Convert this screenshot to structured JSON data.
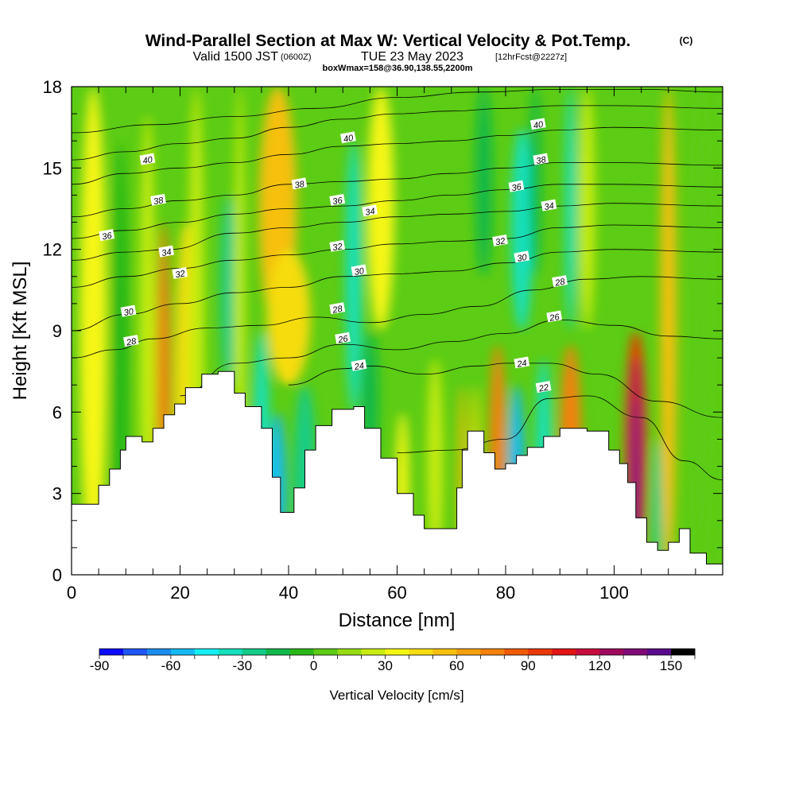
{
  "title": {
    "main": "Wind-Parallel Section at Max W: Vertical Velocity & Pot.Temp.",
    "copyright": "(C)",
    "valid_a": "Valid 1500 JST",
    "valid_b": "(0600Z)",
    "valid_c": "TUE 23 May 2023",
    "valid_d": "[12hrFcst@2227z]",
    "boxw": "boxWmax=158@36.90,138.55,2200m"
  },
  "colorbar": {
    "title": "Vertical Velocity [cm/s]",
    "min": -90,
    "max": 160,
    "step": 10,
    "tick_values": [
      -90,
      -60,
      -30,
      0,
      30,
      60,
      90,
      120,
      150
    ],
    "tick_labels": [
      "-90",
      "-60",
      "-30",
      "0",
      "30",
      "60",
      "90",
      "120",
      "150"
    ],
    "colors": [
      "#0b0bff",
      "#1f55f5",
      "#1a8cf0",
      "#14b9f5",
      "#14f0f5",
      "#14e0bb",
      "#12cc88",
      "#10b84a",
      "#28b818",
      "#5ccc14",
      "#96dc12",
      "#c8ec10",
      "#f6f614",
      "#f6dc10",
      "#f6c00e",
      "#f6a00c",
      "#f6800a",
      "#f05a08",
      "#ea3806",
      "#e41414",
      "#c80a3c",
      "#a0085c",
      "#800a78",
      "#5a0a8c"
    ]
  },
  "chart_data": {
    "type": "heatmap",
    "title": "Wind-Parallel Section at Max W: Vertical Velocity & Pot.Temp.",
    "xlabel": "Distance [nm]",
    "ylabel": "Height [Kft MSL]",
    "xlim": [
      0,
      120
    ],
    "ylim": [
      0,
      18
    ],
    "x_ticks": [
      0,
      20,
      40,
      60,
      80,
      100
    ],
    "x_tick_labels": [
      "0",
      "20",
      "40",
      "60",
      "80",
      "100"
    ],
    "y_ticks": [
      0,
      3,
      6,
      9,
      12,
      15,
      18
    ],
    "y_tick_labels": [
      "0",
      "3",
      "6",
      "9",
      "12",
      "15",
      "18"
    ],
    "terrain": [
      [
        0,
        2.6
      ],
      [
        5,
        3.3
      ],
      [
        7,
        3.9
      ],
      [
        9,
        4.6
      ],
      [
        10,
        5.1
      ],
      [
        13,
        4.9
      ],
      [
        15,
        5.4
      ],
      [
        17,
        5.9
      ],
      [
        19,
        6.3
      ],
      [
        21,
        6.9
      ],
      [
        24,
        7.4
      ],
      [
        27,
        7.5
      ],
      [
        30,
        6.7
      ],
      [
        32,
        6.2
      ],
      [
        35,
        5.4
      ],
      [
        37,
        3.6
      ],
      [
        38.5,
        2.3
      ],
      [
        41,
        3.2
      ],
      [
        43,
        4.6
      ],
      [
        45,
        5.5
      ],
      [
        48,
        6.1
      ],
      [
        52,
        6.2
      ],
      [
        54,
        5.4
      ],
      [
        57,
        4.3
      ],
      [
        60,
        3.0
      ],
      [
        63,
        2.2
      ],
      [
        65,
        1.7
      ],
      [
        69,
        1.7
      ],
      [
        71,
        3.2
      ],
      [
        72,
        4.6
      ],
      [
        73,
        5.3
      ],
      [
        75,
        5.3
      ],
      [
        76,
        4.5
      ],
      [
        78,
        3.9
      ],
      [
        80,
        4.1
      ],
      [
        82,
        4.4
      ],
      [
        84,
        4.7
      ],
      [
        87,
        5.1
      ],
      [
        90,
        5.4
      ],
      [
        95,
        5.3
      ],
      [
        99,
        4.6
      ],
      [
        101,
        4.1
      ],
      [
        102.5,
        3.4
      ],
      [
        104,
        2.1
      ],
      [
        106,
        1.2
      ],
      [
        108,
        0.9
      ],
      [
        110,
        1.2
      ],
      [
        112,
        1.7
      ],
      [
        114,
        0.8
      ],
      [
        117,
        0.4
      ],
      [
        120,
        0.4
      ]
    ],
    "w_columns": [
      {
        "x": 4,
        "w": 5,
        "top": 18,
        "bottom": 0,
        "value": 30
      },
      {
        "x": 9,
        "w": 3,
        "top": 16,
        "bottom": 0,
        "value": -10
      },
      {
        "x": 14,
        "w": 3,
        "top": 17,
        "bottom": 0,
        "value": 20
      },
      {
        "x": 17,
        "w": 2.5,
        "top": 13,
        "bottom": 0,
        "value": 70
      },
      {
        "x": 21,
        "w": 4,
        "top": 13,
        "bottom": 0,
        "value": 40
      },
      {
        "x": 23,
        "w": 3,
        "top": 18,
        "bottom": 0,
        "value": 25
      },
      {
        "x": 29,
        "w": 3,
        "top": 14,
        "bottom": 7,
        "value": -30
      },
      {
        "x": 31,
        "w": 2,
        "top": 18,
        "bottom": 0,
        "value": 20
      },
      {
        "x": 35,
        "w": 3,
        "top": 9,
        "bottom": 0,
        "value": -40
      },
      {
        "x": 38,
        "w": 3,
        "top": 6,
        "bottom": 0,
        "value": -60
      },
      {
        "x": 38,
        "w": 7,
        "top": 18,
        "bottom": 9,
        "value": 55
      },
      {
        "x": 40,
        "w": 8,
        "top": 12,
        "bottom": 7,
        "value": 40
      },
      {
        "x": 43,
        "w": 4,
        "top": 7,
        "bottom": 0,
        "value": -30
      },
      {
        "x": 52,
        "w": 3,
        "top": 16,
        "bottom": 6,
        "value": -40
      },
      {
        "x": 55,
        "w": 3,
        "top": 9,
        "bottom": 4,
        "value": -20
      },
      {
        "x": 57,
        "w": 5,
        "top": 18,
        "bottom": 9,
        "value": 30
      },
      {
        "x": 61,
        "w": 2.5,
        "top": 6,
        "bottom": 0,
        "value": 30
      },
      {
        "x": 67,
        "w": 3,
        "top": 8,
        "bottom": 0,
        "value": 20
      },
      {
        "x": 72,
        "w": 1.5,
        "top": 7,
        "bottom": 0,
        "value": 50
      },
      {
        "x": 74.5,
        "w": 1.5,
        "top": 7,
        "bottom": 0,
        "value": 40
      },
      {
        "x": 76,
        "w": 3,
        "top": 18,
        "bottom": 11,
        "value": -20
      },
      {
        "x": 78.5,
        "w": 3,
        "top": 8.5,
        "bottom": 0,
        "value": 70
      },
      {
        "x": 82,
        "w": 3,
        "top": 7,
        "bottom": 0,
        "value": -60
      },
      {
        "x": 83,
        "w": 4,
        "top": 16.5,
        "bottom": 9,
        "value": -40
      },
      {
        "x": 85.5,
        "w": 2,
        "top": 18,
        "bottom": 11,
        "value": -20
      },
      {
        "x": 87,
        "w": 3,
        "top": 8,
        "bottom": 0,
        "value": -40
      },
      {
        "x": 92,
        "w": 4,
        "top": 8.5,
        "bottom": 0,
        "value": 70
      },
      {
        "x": 92,
        "w": 2,
        "top": 18,
        "bottom": 9,
        "value": -40
      },
      {
        "x": 95,
        "w": 3,
        "top": 18,
        "bottom": 9,
        "value": 20
      },
      {
        "x": 104,
        "w": 4,
        "top": 9,
        "bottom": 0,
        "value": 90
      },
      {
        "x": 104,
        "w": 2,
        "top": 8,
        "bottom": 0,
        "value": 125
      },
      {
        "x": 104,
        "w": 1.2,
        "top": 6.5,
        "bottom": 0,
        "value": 150
      },
      {
        "x": 108,
        "w": 2,
        "top": 5,
        "bottom": 0,
        "value": -30
      },
      {
        "x": 110,
        "w": 3,
        "top": 18,
        "bottom": 0,
        "value": 50
      },
      {
        "x": 116,
        "w": 4,
        "top": 18,
        "bottom": 0,
        "value": 0
      }
    ],
    "theta_contours": [
      {
        "label": "22",
        "label_x": 87,
        "pts": [
          [
            60,
            4.5
          ],
          [
            70,
            4.6
          ],
          [
            80,
            5.0
          ],
          [
            88,
            6.5
          ],
          [
            95,
            6.6
          ],
          [
            105,
            5.8
          ],
          [
            113,
            4.2
          ],
          [
            120,
            3.5
          ]
        ]
      },
      {
        "label": "24",
        "label_x": 53,
        "pts": [
          [
            40,
            7.0
          ],
          [
            50,
            7.6
          ],
          [
            55,
            7.7
          ],
          [
            65,
            7.4
          ],
          [
            75,
            7.7
          ],
          [
            80,
            7.8
          ],
          [
            88,
            7.8
          ],
          [
            97,
            7.4
          ],
          [
            108,
            6.4
          ],
          [
            120,
            5.8
          ]
        ]
      },
      {
        "label": "26",
        "label_x": 50,
        "pts": [
          [
            20,
            6.6
          ],
          [
            30,
            7.8
          ],
          [
            40,
            8.0
          ],
          [
            50,
            8.5
          ],
          [
            60,
            8.3
          ],
          [
            70,
            8.6
          ],
          [
            80,
            8.9
          ],
          [
            90,
            9.4
          ],
          [
            100,
            9.2
          ],
          [
            110,
            8.8
          ],
          [
            120,
            8.7
          ]
        ]
      },
      {
        "label": "28",
        "label_x": 11,
        "pts": [
          [
            0,
            8.0
          ],
          [
            8,
            8.3
          ],
          [
            15,
            8.7
          ],
          [
            25,
            9.1
          ],
          [
            35,
            9.2
          ],
          [
            45,
            9.5
          ],
          [
            55,
            9.3
          ],
          [
            65,
            9.6
          ],
          [
            75,
            9.9
          ],
          [
            85,
            10.5
          ],
          [
            95,
            10.9
          ],
          [
            105,
            11.0
          ],
          [
            120,
            10.9
          ]
        ]
      },
      {
        "label": "30",
        "label_x": 11,
        "pts": [
          [
            0,
            9.0
          ],
          [
            10,
            9.6
          ],
          [
            20,
            10.0
          ],
          [
            30,
            10.4
          ],
          [
            40,
            10.6
          ],
          [
            50,
            11.0
          ],
          [
            60,
            11.1
          ],
          [
            70,
            11.2
          ],
          [
            80,
            11.5
          ],
          [
            90,
            11.9
          ],
          [
            100,
            12.0
          ],
          [
            120,
            11.9
          ]
        ]
      },
      {
        "label": "32",
        "label_x": 20,
        "pts": [
          [
            0,
            10.6
          ],
          [
            10,
            11.0
          ],
          [
            20,
            11.3
          ],
          [
            30,
            11.6
          ],
          [
            40,
            11.8
          ],
          [
            50,
            12.0
          ],
          [
            60,
            12.2
          ],
          [
            70,
            12.3
          ],
          [
            80,
            12.4
          ],
          [
            90,
            12.8
          ],
          [
            100,
            12.9
          ],
          [
            120,
            12.8
          ]
        ]
      },
      {
        "label": "34",
        "label_x": 17,
        "pts": [
          [
            0,
            11.6
          ],
          [
            10,
            11.9
          ],
          [
            18,
            12.0
          ],
          [
            30,
            12.6
          ],
          [
            40,
            12.8
          ],
          [
            50,
            13.0
          ],
          [
            60,
            13.2
          ],
          [
            70,
            13.3
          ],
          [
            80,
            13.4
          ],
          [
            90,
            13.6
          ],
          [
            100,
            13.7
          ],
          [
            120,
            13.6
          ]
        ]
      },
      {
        "label": "36",
        "label_x": 7,
        "pts": [
          [
            0,
            12.4
          ],
          [
            10,
            12.7
          ],
          [
            20,
            13.0
          ],
          [
            30,
            13.3
          ],
          [
            40,
            13.5
          ],
          [
            50,
            13.6
          ],
          [
            60,
            13.8
          ],
          [
            70,
            14.0
          ],
          [
            80,
            14.2
          ],
          [
            90,
            14.4
          ],
          [
            100,
            14.4
          ],
          [
            120,
            14.3
          ]
        ]
      },
      {
        "label": "38",
        "label_x": 16,
        "pts": [
          [
            0,
            13.2
          ],
          [
            10,
            13.5
          ],
          [
            20,
            13.8
          ],
          [
            30,
            14.0
          ],
          [
            40,
            14.4
          ],
          [
            50,
            14.5
          ],
          [
            60,
            14.6
          ],
          [
            70,
            14.8
          ],
          [
            80,
            15.0
          ],
          [
            90,
            15.2
          ],
          [
            100,
            15.2
          ],
          [
            120,
            15.1
          ]
        ]
      },
      {
        "label": "40",
        "label_x": 14,
        "pts": [
          [
            0,
            14.4
          ],
          [
            10,
            14.8
          ],
          [
            20,
            15.0
          ],
          [
            30,
            15.2
          ],
          [
            40,
            15.5
          ],
          [
            50,
            15.8
          ],
          [
            60,
            15.9
          ],
          [
            70,
            16.0
          ],
          [
            80,
            16.2
          ],
          [
            90,
            16.4
          ],
          [
            100,
            16.5
          ],
          [
            120,
            16.4
          ]
        ]
      },
      {
        "label": "",
        "label_x": 0,
        "pts": [
          [
            0,
            15.3
          ],
          [
            10,
            15.6
          ],
          [
            20,
            15.9
          ],
          [
            30,
            16.1
          ],
          [
            40,
            16.5
          ],
          [
            50,
            16.8
          ],
          [
            60,
            17.0
          ],
          [
            70,
            17.1
          ],
          [
            80,
            17.2
          ],
          [
            90,
            17.3
          ],
          [
            100,
            17.3
          ],
          [
            120,
            17.2
          ]
        ]
      },
      {
        "label": "",
        "label_x": 0,
        "pts": [
          [
            0,
            16.3
          ],
          [
            15,
            16.6
          ],
          [
            30,
            16.9
          ],
          [
            45,
            17.2
          ],
          [
            60,
            17.6
          ],
          [
            75,
            17.8
          ],
          [
            90,
            17.9
          ],
          [
            105,
            17.9
          ],
          [
            120,
            17.8
          ]
        ]
      }
    ],
    "theta_labels": [
      {
        "text": "40",
        "x": 14,
        "y": 15.3
      },
      {
        "text": "38",
        "x": 16,
        "y": 13.8
      },
      {
        "text": "36",
        "x": 6.5,
        "y": 12.5
      },
      {
        "text": "34",
        "x": 17.5,
        "y": 11.9
      },
      {
        "text": "32",
        "x": 20,
        "y": 11.1
      },
      {
        "text": "30",
        "x": 10.5,
        "y": 9.7
      },
      {
        "text": "28",
        "x": 11,
        "y": 8.6
      },
      {
        "text": "40",
        "x": 51,
        "y": 16.1
      },
      {
        "text": "38",
        "x": 42,
        "y": 14.4
      },
      {
        "text": "36",
        "x": 49,
        "y": 13.8
      },
      {
        "text": "34",
        "x": 55,
        "y": 13.4
      },
      {
        "text": "32",
        "x": 49,
        "y": 12.1
      },
      {
        "text": "30",
        "x": 53,
        "y": 11.2
      },
      {
        "text": "28",
        "x": 49,
        "y": 9.8
      },
      {
        "text": "26",
        "x": 50,
        "y": 8.7
      },
      {
        "text": "24",
        "x": 53,
        "y": 7.7
      },
      {
        "text": "40",
        "x": 86,
        "y": 16.6
      },
      {
        "text": "38",
        "x": 86.5,
        "y": 15.3
      },
      {
        "text": "36",
        "x": 82,
        "y": 14.3
      },
      {
        "text": "34",
        "x": 88,
        "y": 13.6
      },
      {
        "text": "32",
        "x": 79,
        "y": 12.3
      },
      {
        "text": "30",
        "x": 83,
        "y": 11.7
      },
      {
        "text": "28",
        "x": 90,
        "y": 10.8
      },
      {
        "text": "26",
        "x": 89,
        "y": 9.5
      },
      {
        "text": "24",
        "x": 83,
        "y": 7.8
      },
      {
        "text": "22",
        "x": 87,
        "y": 6.9
      }
    ]
  }
}
